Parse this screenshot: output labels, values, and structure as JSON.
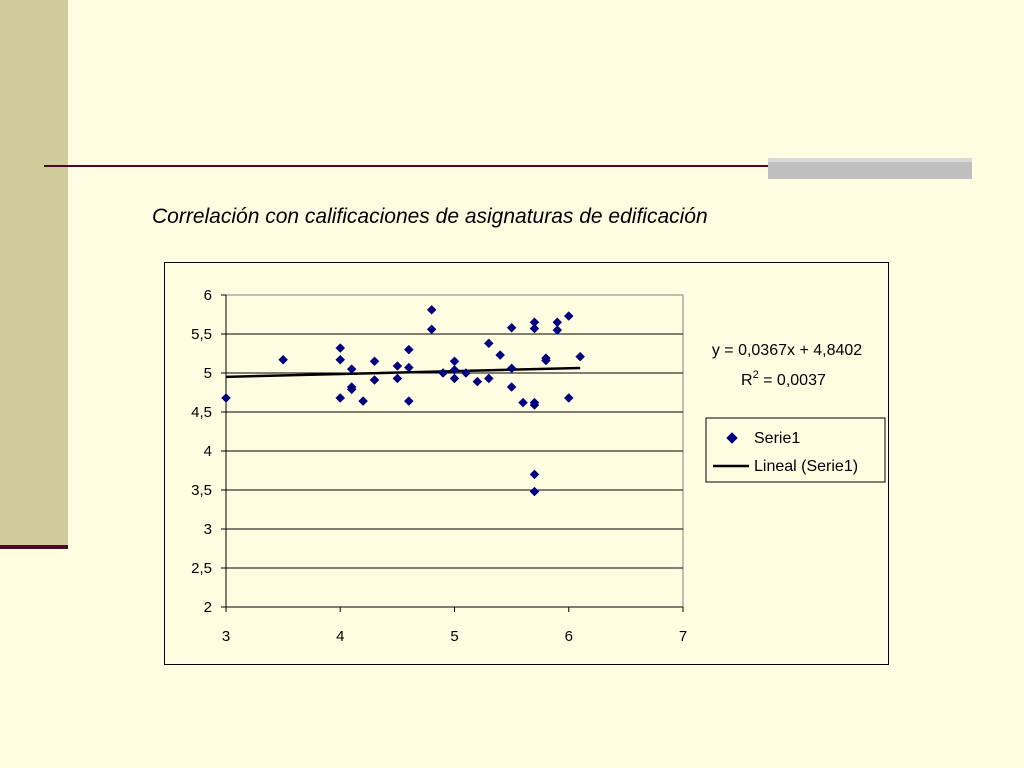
{
  "slide": {
    "title": "Correlación con calificaciones de asignaturas de edificación"
  },
  "chart_data": {
    "type": "scatter",
    "xlim": [
      3,
      7
    ],
    "ylim": [
      2,
      6
    ],
    "x_ticks": [
      "3",
      "4",
      "5",
      "6",
      "7"
    ],
    "y_ticks": [
      "2",
      "2,5",
      "3",
      "3,5",
      "4",
      "4,5",
      "5",
      "5,5",
      "6"
    ],
    "x_tick_values": [
      3,
      4,
      5,
      6,
      7
    ],
    "y_tick_values": [
      2,
      2.5,
      3,
      3.5,
      4,
      4.5,
      5,
      5.5,
      6
    ],
    "grid": "horizontal",
    "legend_position": "right",
    "series": [
      {
        "name": "Serie1",
        "marker": "diamond",
        "color": "#000080",
        "points": [
          [
            3.0,
            4.68
          ],
          [
            3.5,
            5.17
          ],
          [
            4.0,
            5.32
          ],
          [
            4.0,
            5.17
          ],
          [
            4.0,
            4.68
          ],
          [
            4.1,
            5.05
          ],
          [
            4.1,
            4.82
          ],
          [
            4.1,
            4.79
          ],
          [
            4.2,
            4.64
          ],
          [
            4.3,
            5.15
          ],
          [
            4.3,
            4.91
          ],
          [
            4.5,
            5.09
          ],
          [
            4.5,
            4.93
          ],
          [
            4.6,
            5.3
          ],
          [
            4.6,
            5.07
          ],
          [
            4.6,
            4.64
          ],
          [
            4.8,
            5.81
          ],
          [
            4.8,
            5.56
          ],
          [
            4.9,
            5.0
          ],
          [
            5.0,
            5.15
          ],
          [
            5.0,
            5.04
          ],
          [
            5.0,
            4.93
          ],
          [
            5.1,
            5.0
          ],
          [
            5.2,
            4.89
          ],
          [
            5.3,
            5.38
          ],
          [
            5.3,
            4.93
          ],
          [
            5.4,
            5.23
          ],
          [
            5.5,
            5.58
          ],
          [
            5.5,
            5.06
          ],
          [
            5.5,
            4.82
          ],
          [
            5.6,
            4.62
          ],
          [
            5.7,
            5.65
          ],
          [
            5.7,
            5.57
          ],
          [
            5.7,
            4.62
          ],
          [
            5.7,
            4.59
          ],
          [
            5.7,
            3.7
          ],
          [
            5.7,
            3.48
          ],
          [
            5.8,
            5.19
          ],
          [
            5.8,
            5.16
          ],
          [
            5.9,
            5.65
          ],
          [
            5.9,
            5.55
          ],
          [
            6.0,
            5.73
          ],
          [
            6.0,
            4.68
          ],
          [
            6.1,
            5.21
          ]
        ]
      },
      {
        "name": "Lineal (Serie1)",
        "type": "line",
        "color": "#000000",
        "x": [
          3.0,
          6.1
        ],
        "y": [
          4.9503,
          5.0641
        ]
      }
    ],
    "annotation": {
      "equation": "y = 0,0367x + 4,8402",
      "r2_prefix": "R",
      "r2_sup": "2",
      "r2_value": " = 0,0037"
    }
  }
}
